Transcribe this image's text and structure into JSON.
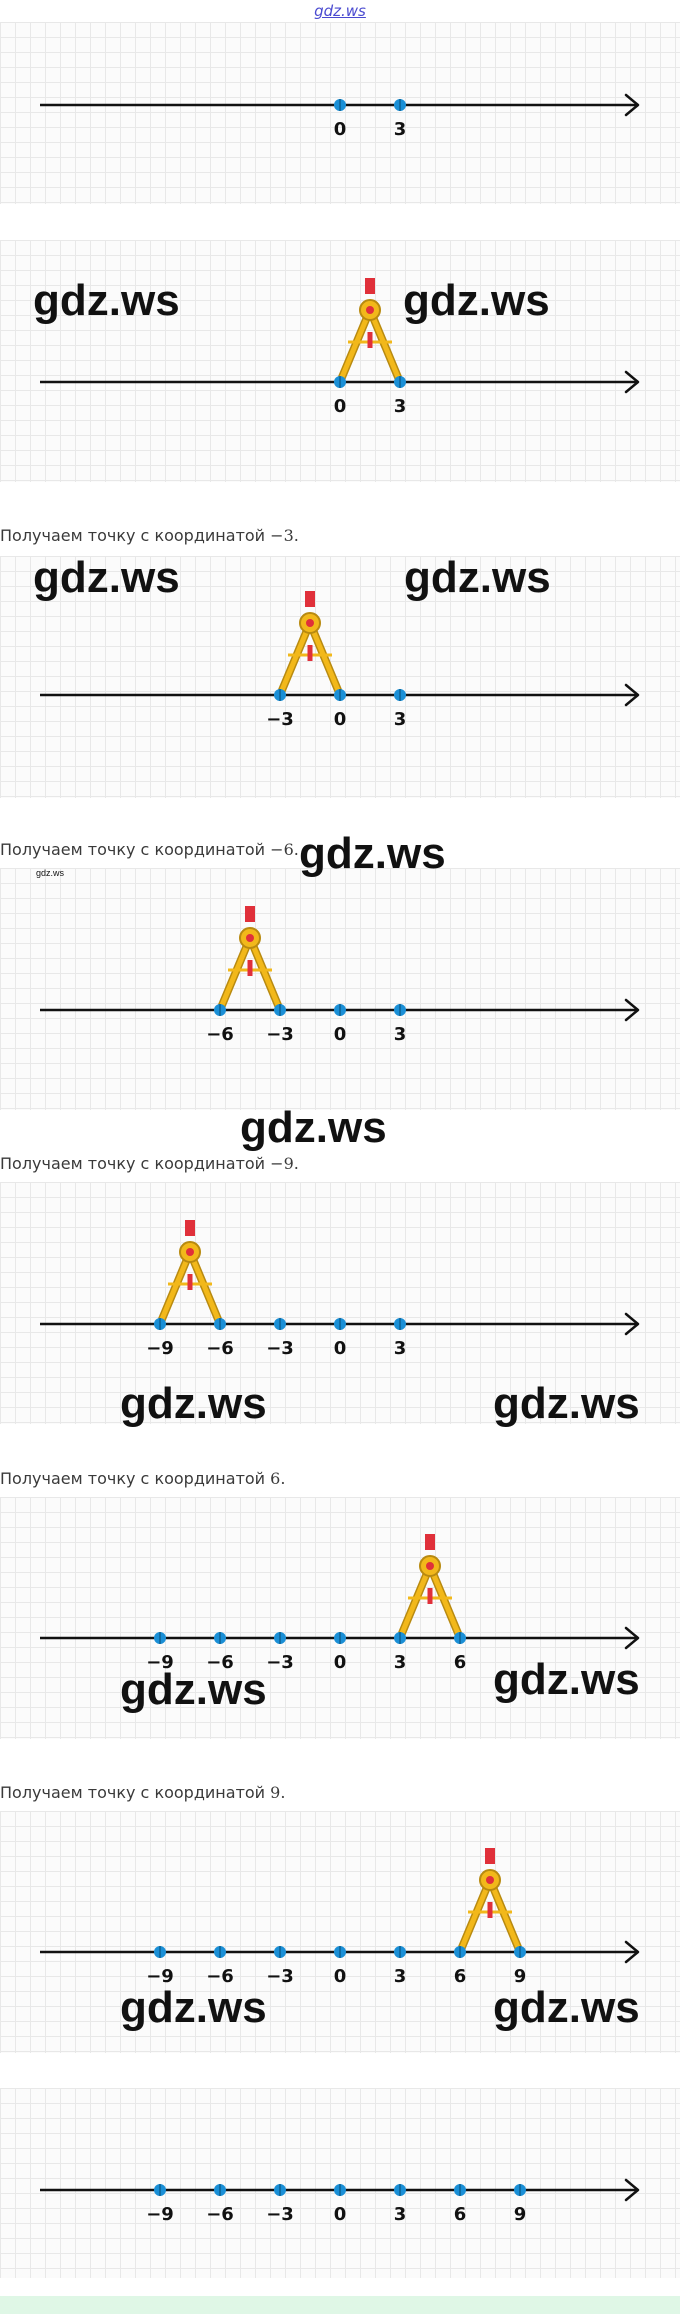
{
  "site": {
    "logo_text": "gdz.ws",
    "watermark_small": "gdz.ws"
  },
  "watermark_text": "gdz.ws",
  "panels": [
    {
      "labels": [
        "0",
        "3"
      ],
      "compass": null
    },
    {
      "labels": [
        "0",
        "3"
      ],
      "compass": {
        "from": "0",
        "to": "3"
      }
    },
    {
      "caption": "Получаем точку с координатой",
      "caption_value": "−3.",
      "labels": [
        "−3",
        "0",
        "3"
      ],
      "compass": {
        "from": "−3",
        "to": "0"
      }
    },
    {
      "caption": "Получаем точку с координатой",
      "caption_value": "−6.",
      "labels": [
        "−6",
        "−3",
        "0",
        "3"
      ],
      "compass": {
        "from": "−6",
        "to": "−3"
      }
    },
    {
      "caption": "Получаем точку с координатой",
      "caption_value": "−9.",
      "labels": [
        "−9",
        "−6",
        "−3",
        "0",
        "3"
      ],
      "compass": {
        "from": "−9",
        "to": "−6"
      }
    },
    {
      "caption": "Получаем точку с координатой",
      "caption_value": "6.",
      "labels": [
        "−9",
        "−6",
        "−3",
        "0",
        "3",
        "6"
      ],
      "compass": {
        "from": "3",
        "to": "6"
      }
    },
    {
      "caption": "Получаем точку с координатой",
      "caption_value": "9.",
      "labels": [
        "−9",
        "−6",
        "−3",
        "0",
        "3",
        "6",
        "9"
      ],
      "compass": {
        "from": "6",
        "to": "9"
      }
    },
    {
      "labels": [
        "−9",
        "−6",
        "−3",
        "0",
        "3",
        "6",
        "9"
      ],
      "compass": null
    }
  ],
  "colors": {
    "axis": "#111111",
    "point": "#1a8fd6",
    "compass_body": "#f2b81a",
    "compass_outline": "#b88a10",
    "compass_red": "#e0303a",
    "grid": "#e8e8e8"
  }
}
